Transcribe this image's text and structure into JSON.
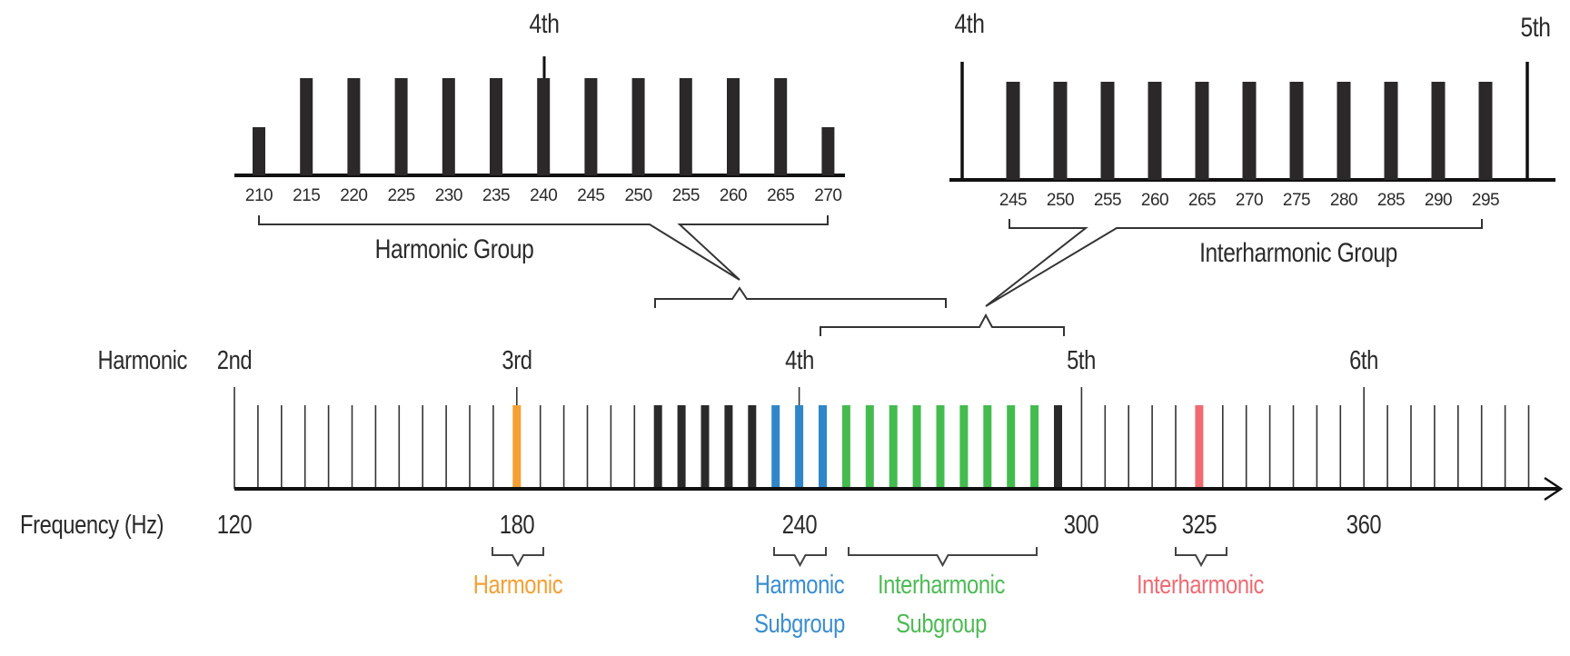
{
  "diagram": {
    "title_row_label": "Harmonic",
    "frequency_row_label": "Frequency (Hz)",
    "main_axis": {
      "harmonic_labels": [
        {
          "label": "2nd",
          "freq": 120
        },
        {
          "label": "3rd",
          "freq": 180
        },
        {
          "label": "4th",
          "freq": 240
        },
        {
          "label": "5th",
          "freq": 300
        },
        {
          "label": "6th",
          "freq": 360
        }
      ],
      "frequency_labels": [
        {
          "label": "120",
          "freq": 120
        },
        {
          "label": "180",
          "freq": 180
        },
        {
          "label": "240",
          "freq": 240
        },
        {
          "label": "300",
          "freq": 300
        },
        {
          "label": "325",
          "freq": 325
        },
        {
          "label": "360",
          "freq": 360
        }
      ],
      "tick_start": 120,
      "tick_end": 395,
      "tick_step": 5,
      "highlighted": {
        "harmonic_orange": [
          180
        ],
        "harmonic_group_black": [
          210,
          215,
          220,
          225,
          230,
          295
        ],
        "harmonic_subgroup_blue": [
          235,
          240,
          245
        ],
        "interharmonic_subgroup_green": [
          250,
          255,
          260,
          265,
          270,
          275,
          280,
          285,
          290
        ],
        "interharmonic_red": [
          325
        ]
      }
    },
    "annotations": [
      {
        "label": "Harmonic",
        "color": "#f5a033"
      },
      {
        "label_line1": "Harmonic",
        "label_line2": "Subgroup",
        "color": "#3a8ed0"
      },
      {
        "label_line1": "Interharmonic",
        "label_line2": "Subgroup",
        "color": "#4dbb55"
      },
      {
        "label": "Interharmonic",
        "color": "#ef6b73"
      }
    ],
    "harmonic_group_panel": {
      "top_label": "4th",
      "group_label": "Harmonic Group",
      "ticks": [
        "210",
        "215",
        "220",
        "225",
        "230",
        "235",
        "240",
        "245",
        "250",
        "255",
        "260",
        "265",
        "270"
      ]
    },
    "interharmonic_group_panel": {
      "left_label": "4th",
      "right_label": "5th",
      "group_label": "Interharmonic Group",
      "ticks": [
        "245",
        "250",
        "255",
        "260",
        "265",
        "270",
        "275",
        "280",
        "285",
        "290",
        "295"
      ]
    }
  },
  "colors": {
    "ink": "#2b2a2b",
    "orange": "#f5a033",
    "blue": "#2f86c8",
    "green": "#44bb4f",
    "red": "#f06a72"
  }
}
